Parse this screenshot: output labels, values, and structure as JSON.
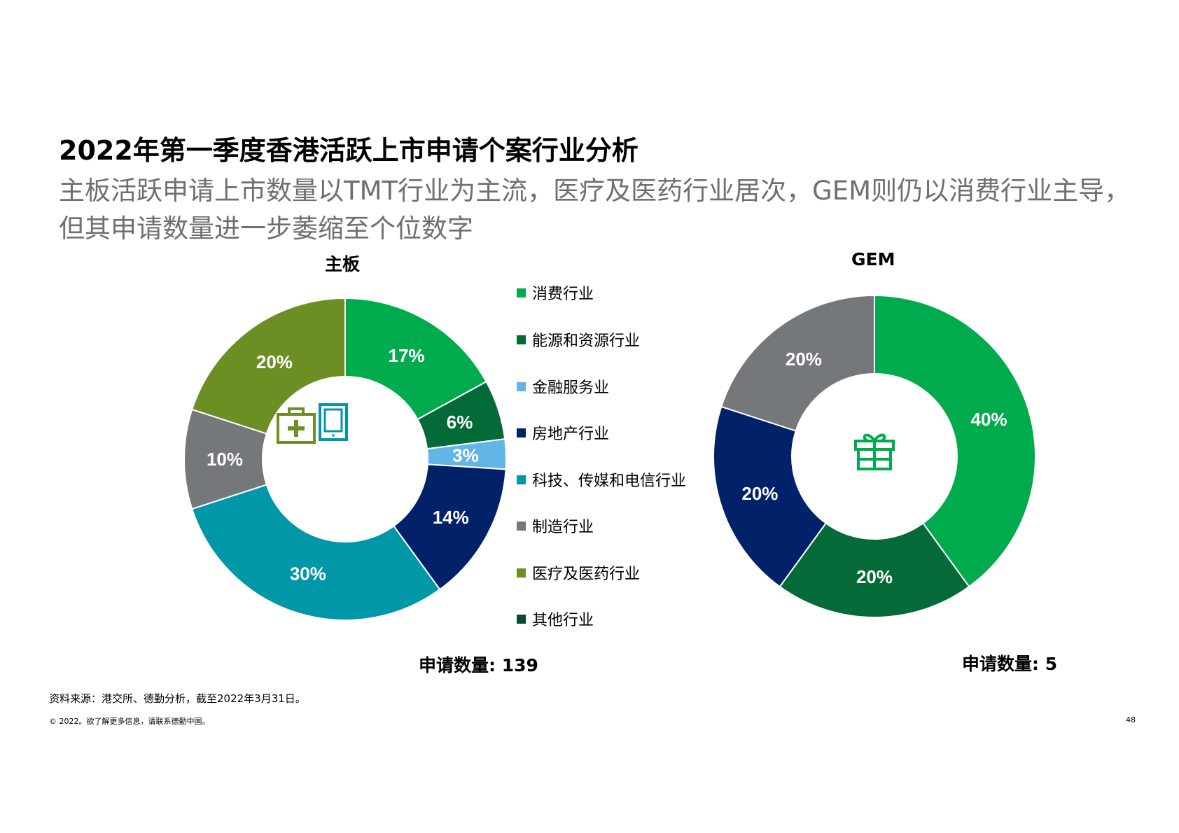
{
  "title": "2022年第一季度香港活跃上市申请个案行业分析",
  "subtitle": "主板活跃申请上市数量以TMT行业为主流，医疗及医药行业居次，GEM则仍以消费行业主导，但其申请数量进一步萎缩至个位数字",
  "legend": [
    {
      "label": "消费行业",
      "color": "#00ab4e"
    },
    {
      "label": "能源和资源行业",
      "color": "#046a38"
    },
    {
      "label": "金融服务业",
      "color": "#62b5e5"
    },
    {
      "label": "房地产行业",
      "color": "#012169"
    },
    {
      "label": "科技、传媒和电信行业",
      "color": "#0097a9"
    },
    {
      "label": "制造行业",
      "color": "#75787b"
    },
    {
      "label": "医疗及医药行业",
      "color": "#6b8f22"
    },
    {
      "label": "其他行业",
      "color": "#0b4a2d"
    }
  ],
  "chart_data": [
    {
      "type": "pie",
      "title": "主板",
      "categories": [
        "消费行业",
        "能源和资源行业",
        "金融服务业",
        "房地产行业",
        "科技、传媒和电信行业",
        "制造行业",
        "医疗及医药行业"
      ],
      "values": [
        17,
        6,
        3,
        14,
        30,
        10,
        20
      ],
      "labels": [
        "17%",
        "6%",
        "3%",
        "14%",
        "30%",
        "10%",
        "20%"
      ],
      "colors": [
        "#00ab4e",
        "#046a38",
        "#62b5e5",
        "#012169",
        "#0097a9",
        "#75787b",
        "#6b8f22"
      ],
      "label_colors": [
        "#ffffff",
        "#ffffff",
        "#ffffff",
        "#ffffff",
        "#ffffff",
        "#ffffff",
        "#ffffff"
      ],
      "count_label": "申请数量: 139",
      "center_icons": [
        "medical-kit-icon",
        "tablet-icon"
      ]
    },
    {
      "type": "pie",
      "title": "GEM",
      "categories": [
        "消费行业",
        "能源和资源行业",
        "房地产行业",
        "制造行业"
      ],
      "values": [
        40,
        20,
        20,
        20
      ],
      "labels": [
        "40%",
        "20%",
        "20%",
        "20%"
      ],
      "colors": [
        "#00ab4e",
        "#046a38",
        "#012169",
        "#75787b"
      ],
      "label_colors": [
        "#ffffff",
        "#ffffff",
        "#ffffff",
        "#ffffff"
      ],
      "count_label": "申请数量: 5",
      "center_icons": [
        "gift-icon"
      ]
    }
  ],
  "footer": {
    "source": "资料来源：港交所、德勤分析，截至2022年3月31日。",
    "copyright": "© 2022。欲了解更多信息，请联系德勤中国。",
    "page_number": "48"
  }
}
